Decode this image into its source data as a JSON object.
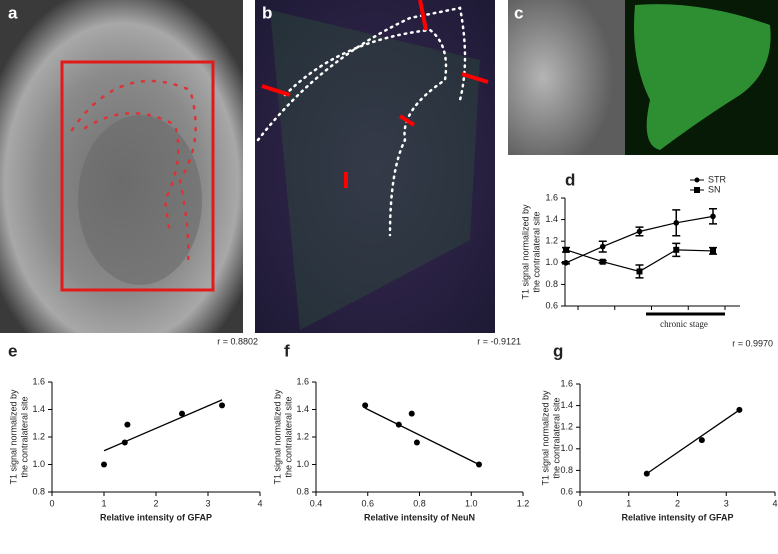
{
  "image_panels": [
    "a",
    "b",
    "c"
  ],
  "chart_data": [
    {
      "type": "line",
      "panel": "d",
      "ylabel": [
        "T1 signal normalized by",
        "the contralateral site"
      ],
      "categories": [
        null,
        null,
        null,
        null,
        null
      ],
      "series": [
        {
          "name": "STR",
          "color": "#000000",
          "marker": "circle",
          "values": [
            1.0,
            1.15,
            1.29,
            1.37,
            1.43
          ],
          "errors": [
            0.01,
            0.05,
            0.04,
            0.12,
            0.07
          ]
        },
        {
          "name": "SN",
          "color": "#000000",
          "marker": "square",
          "values": [
            1.12,
            1.01,
            0.92,
            1.12,
            1.11
          ],
          "errors": [
            0.02,
            0.01,
            0.06,
            0.06,
            0.03
          ]
        }
      ],
      "ylim": [
        0.6,
        1.6
      ],
      "yticks": [
        0.6,
        0.8,
        {
          "value": 1.0,
          "label": "1.0"
        },
        1.2,
        1.4,
        1.6
      ],
      "annotation": "chronic stage",
      "legend": "upper right"
    },
    {
      "type": "scatter",
      "panel": "e",
      "annotation": "r = 0.8802",
      "xlabel": "Relative intensity of GFAP",
      "ylabel": [
        "T1 signal normalized by",
        "the contralateral site"
      ],
      "x": [
        1.0,
        1.4,
        1.45,
        2.5,
        3.27
      ],
      "values": [
        1.0,
        1.16,
        1.29,
        1.37,
        1.43
      ],
      "fit_line": {
        "x": [
          1.0,
          3.27
        ],
        "y": [
          1.1,
          1.47
        ]
      },
      "xlim": [
        0,
        4
      ],
      "xticks": [
        0,
        1,
        2,
        3,
        4
      ],
      "ylim": [
        0.8,
        1.6
      ],
      "yticks": [
        0.8,
        {
          "value": 1.0,
          "label": "1.0"
        },
        1.2,
        1.4,
        1.6
      ]
    },
    {
      "type": "scatter",
      "panel": "f",
      "annotation": "r = -0.9121",
      "xlabel": "Relative intensity of NeuN",
      "ylabel": [
        "T1 signal normalized by",
        "the contralateral site"
      ],
      "x": [
        0.59,
        0.72,
        0.77,
        0.79,
        1.03
      ],
      "values": [
        1.43,
        1.29,
        1.37,
        1.16,
        1.0
      ],
      "fit_line": {
        "x": [
          0.59,
          1.03
        ],
        "y": [
          1.41,
          1.0
        ]
      },
      "xlim": [
        0.4,
        1.2
      ],
      "xticks": [
        0.4,
        0.6,
        0.8,
        {
          "value": 1.0,
          "label": "1.0"
        },
        1.2
      ],
      "ylim": [
        0.8,
        1.6
      ],
      "yticks": [
        0.8,
        {
          "value": 1.0,
          "label": "1.0"
        },
        1.2,
        1.4,
        1.6
      ]
    },
    {
      "type": "scatter",
      "panel": "g",
      "annotation": "r = 0.9970",
      "xlabel": "Relative intensity of GFAP",
      "ylabel": [
        "T1 signal normalized by",
        "the contralateral site"
      ],
      "x": [
        1.37,
        2.5,
        3.27
      ],
      "values": [
        0.77,
        1.08,
        1.36
      ],
      "fit_line": {
        "x": [
          1.37,
          3.27
        ],
        "y": [
          0.77,
          1.36
        ]
      },
      "xlim": [
        0,
        4
      ],
      "xticks": [
        0,
        1,
        2,
        3,
        4
      ],
      "ylim": [
        0.6,
        1.6
      ],
      "yticks": [
        0.6,
        0.8,
        {
          "value": 1.0,
          "label": "1.0"
        },
        1.2,
        1.4,
        1.6
      ]
    }
  ]
}
